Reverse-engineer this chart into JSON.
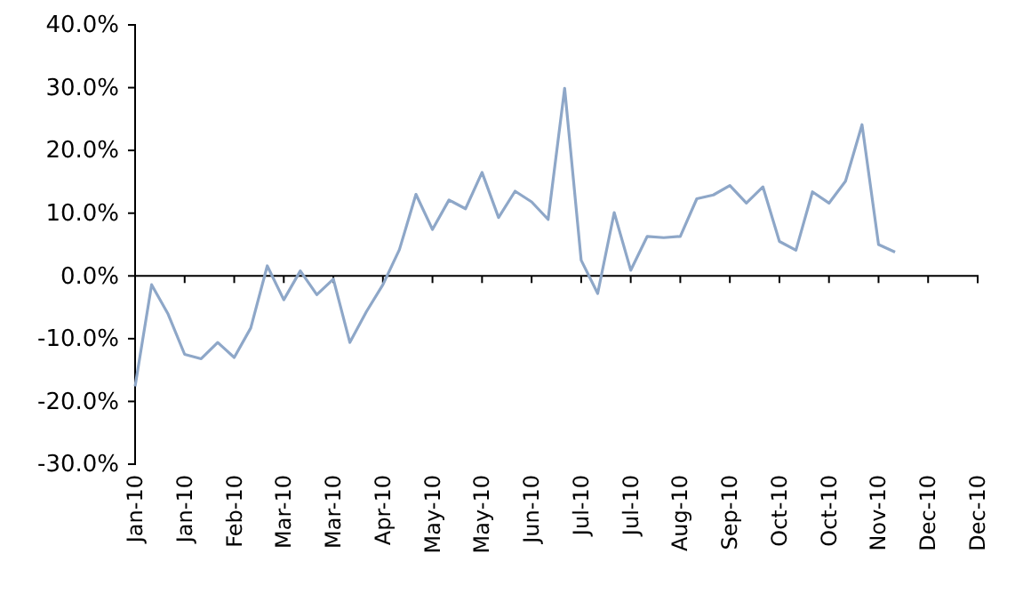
{
  "chart_data": {
    "type": "line",
    "x": [
      "2010-01-01",
      "2010-01-08",
      "2010-01-15",
      "2010-01-22",
      "2010-01-29",
      "2010-02-05",
      "2010-02-12",
      "2010-02-19",
      "2010-02-26",
      "2010-03-05",
      "2010-03-12",
      "2010-03-19",
      "2010-03-26",
      "2010-04-02",
      "2010-04-09",
      "2010-04-16",
      "2010-04-23",
      "2010-04-30",
      "2010-05-07",
      "2010-05-14",
      "2010-05-21",
      "2010-05-28",
      "2010-06-04",
      "2010-06-11",
      "2010-06-18",
      "2010-06-25",
      "2010-07-02",
      "2010-07-09",
      "2010-07-16",
      "2010-07-23",
      "2010-07-30",
      "2010-08-06",
      "2010-08-13",
      "2010-08-20",
      "2010-08-27",
      "2010-09-03",
      "2010-09-10",
      "2010-09-17",
      "2010-09-24",
      "2010-10-01",
      "2010-10-08",
      "2010-10-15",
      "2010-10-22",
      "2010-10-29",
      "2010-11-05",
      "2010-11-12",
      "2010-11-19"
    ],
    "series": [
      {
        "color": "#8ea7c8",
        "values": [
          -17.6,
          -1.4,
          -6.1,
          -12.5,
          -13.2,
          -10.6,
          -13.0,
          -8.3,
          1.6,
          -3.8,
          0.8,
          -3.0,
          -0.5,
          -10.6,
          -5.7,
          -1.4,
          4.2,
          13.0,
          7.4,
          12.1,
          10.7,
          16.5,
          9.3,
          13.5,
          11.8,
          9.0,
          29.9,
          2.5,
          -2.8,
          10.1,
          0.9,
          6.3,
          6.1,
          6.3,
          12.3,
          12.9,
          14.4,
          11.6,
          14.2,
          5.5,
          4.1,
          13.4,
          11.6,
          15.1,
          24.1,
          5.0,
          3.8
        ]
      }
    ],
    "xlim": [
      "2010-01-01",
      "2010-12-24"
    ],
    "xticks": [
      {
        "value": "2010-01-01",
        "label": "Jan-10"
      },
      {
        "value": "2010-01-22",
        "label": "Jan-10"
      },
      {
        "value": "2010-02-12",
        "label": "Feb-10"
      },
      {
        "value": "2010-03-05",
        "label": "Mar-10"
      },
      {
        "value": "2010-03-26",
        "label": "Mar-10"
      },
      {
        "value": "2010-04-16",
        "label": "Apr-10"
      },
      {
        "value": "2010-05-07",
        "label": "May-10"
      },
      {
        "value": "2010-05-28",
        "label": "May-10"
      },
      {
        "value": "2010-06-18",
        "label": "Jun-10"
      },
      {
        "value": "2010-07-09",
        "label": "Jul-10"
      },
      {
        "value": "2010-07-30",
        "label": "Jul-10"
      },
      {
        "value": "2010-08-20",
        "label": "Aug-10"
      },
      {
        "value": "2010-09-10",
        "label": "Sep-10"
      },
      {
        "value": "2010-10-01",
        "label": "Oct-10"
      },
      {
        "value": "2010-10-22",
        "label": "Oct-10"
      },
      {
        "value": "2010-11-12",
        "label": "Nov-10"
      },
      {
        "value": "2010-12-03",
        "label": "Dec-10"
      },
      {
        "value": "2010-12-24",
        "label": "Dec-10"
      }
    ],
    "ylim": [
      -30,
      40
    ],
    "yticks": [
      {
        "value": -30,
        "label": "-30.0%"
      },
      {
        "value": -20,
        "label": "-20.0%"
      },
      {
        "value": -10,
        "label": "-10.0%"
      },
      {
        "value": 0,
        "label": "0.0%"
      },
      {
        "value": 10,
        "label": "10.0%"
      },
      {
        "value": 20,
        "label": "20.0%"
      },
      {
        "value": 30,
        "label": "30.0%"
      },
      {
        "value": 40,
        "label": "40.0%"
      }
    ],
    "marker": "none",
    "line_style": "solid"
  }
}
